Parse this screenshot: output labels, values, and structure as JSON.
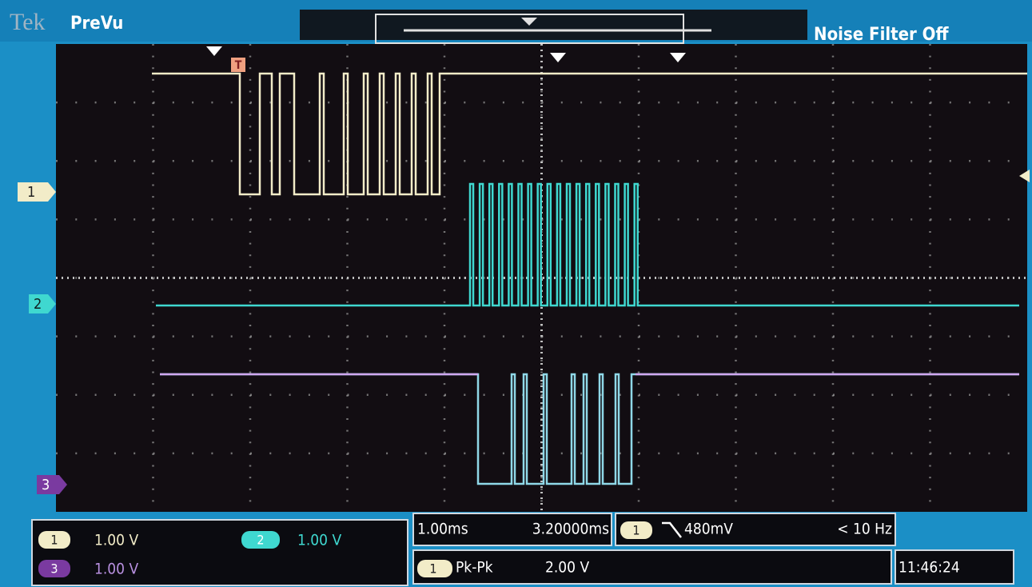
{
  "header": {
    "brand": "Tek",
    "mode": "PreVu",
    "noise_filter": "Noise Filter Off"
  },
  "trigger_marker": "T",
  "channels": [
    {
      "label": "1",
      "scale": "1.00 V"
    },
    {
      "label": "2",
      "scale": "1.00 V"
    },
    {
      "label": "3",
      "scale": "1.00 V"
    }
  ],
  "timebase": {
    "scale": "1.00ms",
    "position": "3.20000ms"
  },
  "trigger": {
    "source": "1",
    "level": "480mV",
    "frequency": "< 10 Hz"
  },
  "measurement": {
    "source": "1",
    "type": "Pk-Pk",
    "value": "2.00 V"
  },
  "clock": "11:46:24"
}
